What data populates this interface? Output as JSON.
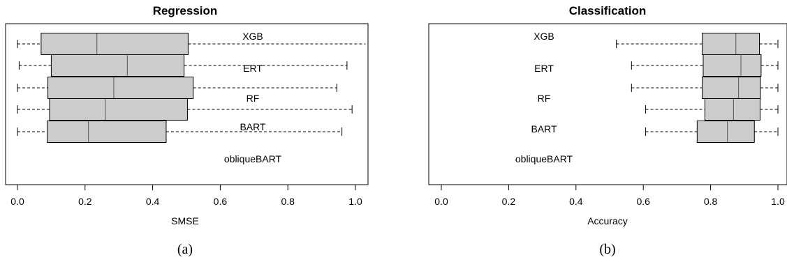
{
  "chart_data": [
    {
      "type": "boxplot",
      "title": "Regression",
      "xlabel": "SMSE",
      "ylabel": "",
      "caption": "(a)",
      "xlim": [
        0.0,
        1.0
      ],
      "x_ticks": [
        "0.0",
        "0.2",
        "0.4",
        "0.6",
        "0.8",
        "1.0"
      ],
      "x_tick_values": [
        0.0,
        0.2,
        0.4,
        0.6,
        0.8,
        1.0
      ],
      "grid": false,
      "series": [
        {
          "name": "XGB",
          "min": 0.0,
          "q1": 0.07,
          "median": 0.235,
          "q3": 0.505,
          "max": 1.03
        },
        {
          "name": "ERT",
          "min": 0.005,
          "q1": 0.1,
          "median": 0.325,
          "q3": 0.493,
          "max": 0.975
        },
        {
          "name": "RF",
          "min": 0.0,
          "q1": 0.09,
          "median": 0.285,
          "q3": 0.52,
          "max": 0.945
        },
        {
          "name": "BART",
          "min": 0.0,
          "q1": 0.095,
          "median": 0.26,
          "q3": 0.503,
          "max": 0.99
        },
        {
          "name": "obliqueBART",
          "min": 0.0,
          "q1": 0.088,
          "median": 0.21,
          "q3": 0.44,
          "max": 0.96
        }
      ]
    },
    {
      "type": "boxplot",
      "title": "Classification",
      "xlabel": "Accuracy",
      "ylabel": "",
      "caption": "(b)",
      "xlim": [
        0.0,
        1.0
      ],
      "x_ticks": [
        "0.0",
        "0.2",
        "0.4",
        "0.6",
        "0.8",
        "1.0"
      ],
      "x_tick_values": [
        0.0,
        0.2,
        0.4,
        0.6,
        0.8,
        1.0
      ],
      "grid": false,
      "series": [
        {
          "name": "XGB",
          "min": 0.52,
          "q1": 0.775,
          "median": 0.875,
          "q3": 0.945,
          "max": 1.0
        },
        {
          "name": "ERT",
          "min": 0.565,
          "q1": 0.778,
          "median": 0.89,
          "q3": 0.95,
          "max": 1.0
        },
        {
          "name": "RF",
          "min": 0.565,
          "q1": 0.775,
          "median": 0.883,
          "q3": 0.948,
          "max": 1.0
        },
        {
          "name": "BART",
          "min": 0.607,
          "q1": 0.783,
          "median": 0.868,
          "q3": 0.947,
          "max": 1.0
        },
        {
          "name": "obliqueBART",
          "min": 0.607,
          "q1": 0.76,
          "median": 0.85,
          "q3": 0.93,
          "max": 1.0
        }
      ]
    }
  ]
}
